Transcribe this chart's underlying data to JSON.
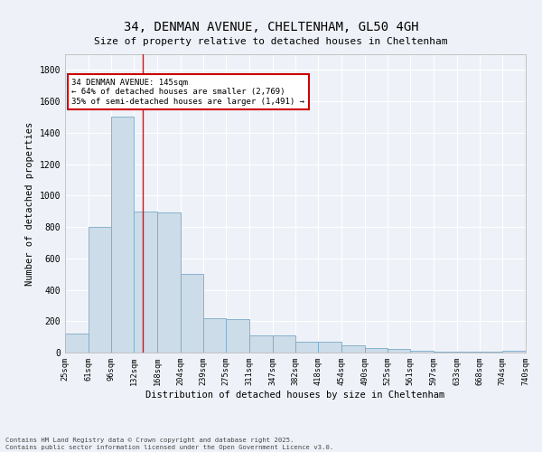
{
  "title": "34, DENMAN AVENUE, CHELTENHAM, GL50 4GH",
  "subtitle": "Size of property relative to detached houses in Cheltenham",
  "xlabel": "Distribution of detached houses by size in Cheltenham",
  "ylabel": "Number of detached properties",
  "bar_values": [
    120,
    800,
    1500,
    900,
    890,
    500,
    220,
    215,
    110,
    110,
    70,
    68,
    45,
    30,
    25,
    10,
    5,
    5,
    5,
    10
  ],
  "bin_edges": [
    25,
    61,
    96,
    132,
    168,
    204,
    239,
    275,
    311,
    347,
    382,
    418,
    454,
    490,
    525,
    561,
    597,
    633,
    668,
    704,
    740
  ],
  "tick_labels": [
    "25sqm",
    "61sqm",
    "96sqm",
    "132sqm",
    "168sqm",
    "204sqm",
    "239sqm",
    "275sqm",
    "311sqm",
    "347sqm",
    "382sqm",
    "418sqm",
    "454sqm",
    "490sqm",
    "525sqm",
    "561sqm",
    "597sqm",
    "633sqm",
    "668sqm",
    "704sqm",
    "740sqm"
  ],
  "bar_color": "#ccdce8",
  "bar_edge_color": "#7aaac8",
  "bar_edge_width": 0.6,
  "red_line_x": 145,
  "annotation_line1": "34 DENMAN AVENUE: 145sqm",
  "annotation_line2": "← 64% of detached houses are smaller (2,769)",
  "annotation_line3": "35% of semi-detached houses are larger (1,491) →",
  "annotation_box_color": "#ffffff",
  "annotation_box_edge_color": "#cc0000",
  "ylim": [
    0,
    1900
  ],
  "yticks": [
    0,
    200,
    400,
    600,
    800,
    1000,
    1200,
    1400,
    1600,
    1800
  ],
  "background_color": "#eef2f8",
  "grid_color": "#ffffff",
  "footer_line1": "Contains HM Land Registry data © Crown copyright and database right 2025.",
  "footer_line2": "Contains public sector information licensed under the Open Government Licence v3.0."
}
